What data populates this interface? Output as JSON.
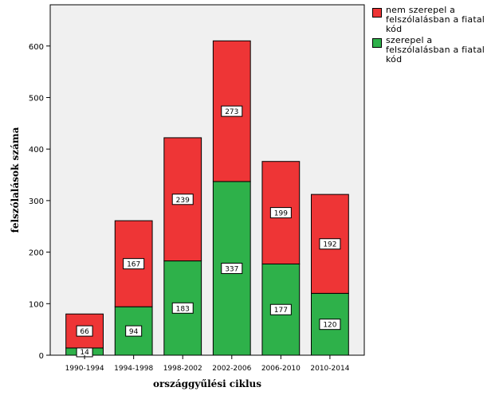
{
  "chart_data": {
    "type": "bar",
    "stacked": true,
    "categories": [
      "1990-1994",
      "1994-1998",
      "1998-2002",
      "2002-2006",
      "2006-2010",
      "2010-2014"
    ],
    "series": [
      {
        "name": "szerepel a felszólalásban a fiatal kód",
        "values": [
          14,
          94,
          183,
          337,
          177,
          120
        ],
        "color": "#2eb14a"
      },
      {
        "name": "nem szerepel a felszólalásban a fiatal kód",
        "values": [
          66,
          167,
          239,
          273,
          199,
          192
        ],
        "color": "#ee3536"
      }
    ],
    "title": "",
    "xlabel": "országgyűlési ciklus",
    "ylabel": "felszólalások száma",
    "ylim": [
      0,
      680
    ],
    "yticks": [
      0,
      100,
      200,
      300,
      400,
      500,
      600
    ],
    "grid": false,
    "legend_position": "top-right",
    "legend_order": [
      1,
      0
    ],
    "plot_background": "#f0f0f0"
  }
}
